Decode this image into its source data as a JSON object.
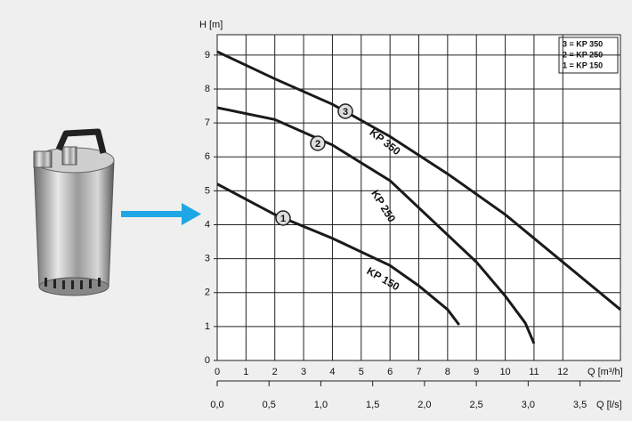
{
  "chart_data": {
    "type": "line",
    "ylabel": "H [m]",
    "xlabel": "Q [m³/h]",
    "x2label": "Q [l/s]",
    "xlim": [
      0,
      14
    ],
    "xticks": [
      0,
      1,
      2,
      3,
      4,
      5,
      6,
      7,
      8,
      9,
      10,
      11,
      12
    ],
    "ylim": [
      0,
      9.6
    ],
    "yticks": [
      0,
      1,
      2,
      3,
      4,
      5,
      6,
      7,
      8,
      9
    ],
    "x2lim": [
      0,
      3.89
    ],
    "x2ticks": [
      {
        "value": 0,
        "label": "0,0"
      },
      {
        "value": 0.5,
        "label": "0,5"
      },
      {
        "value": 1,
        "label": "1,0"
      },
      {
        "value": 1.5,
        "label": "1,5"
      },
      {
        "value": 2,
        "label": "2,0"
      },
      {
        "value": 2.5,
        "label": "2,5"
      },
      {
        "value": 3,
        "label": "3,0"
      },
      {
        "value": 3.5,
        "label": "3,5"
      }
    ],
    "grid": true,
    "legend": [
      "3 = KP 350",
      "2 = KP 250",
      "1 = KP 150"
    ],
    "series": [
      {
        "name": "KP 350",
        "marker_label": "3",
        "color": "#1a1a1a",
        "x": [
          0,
          2,
          4,
          6,
          8,
          10,
          12,
          14
        ],
        "values": [
          9.1,
          8.3,
          7.55,
          6.6,
          5.5,
          4.3,
          2.9,
          1.5
        ]
      },
      {
        "name": "KP 250",
        "marker_label": "2",
        "color": "#1a1a1a",
        "x": [
          0,
          2,
          4,
          6,
          8,
          9,
          10,
          10.7,
          11
        ],
        "values": [
          7.45,
          7.1,
          6.35,
          5.3,
          3.7,
          2.9,
          1.9,
          1.1,
          0.5
        ]
      },
      {
        "name": "KP 150",
        "marker_label": "1",
        "color": "#1a1a1a",
        "x": [
          0,
          2,
          4,
          6,
          7,
          8,
          8.4
        ],
        "values": [
          5.2,
          4.3,
          3.6,
          2.8,
          2.2,
          1.5,
          1.05
        ]
      }
    ]
  }
}
